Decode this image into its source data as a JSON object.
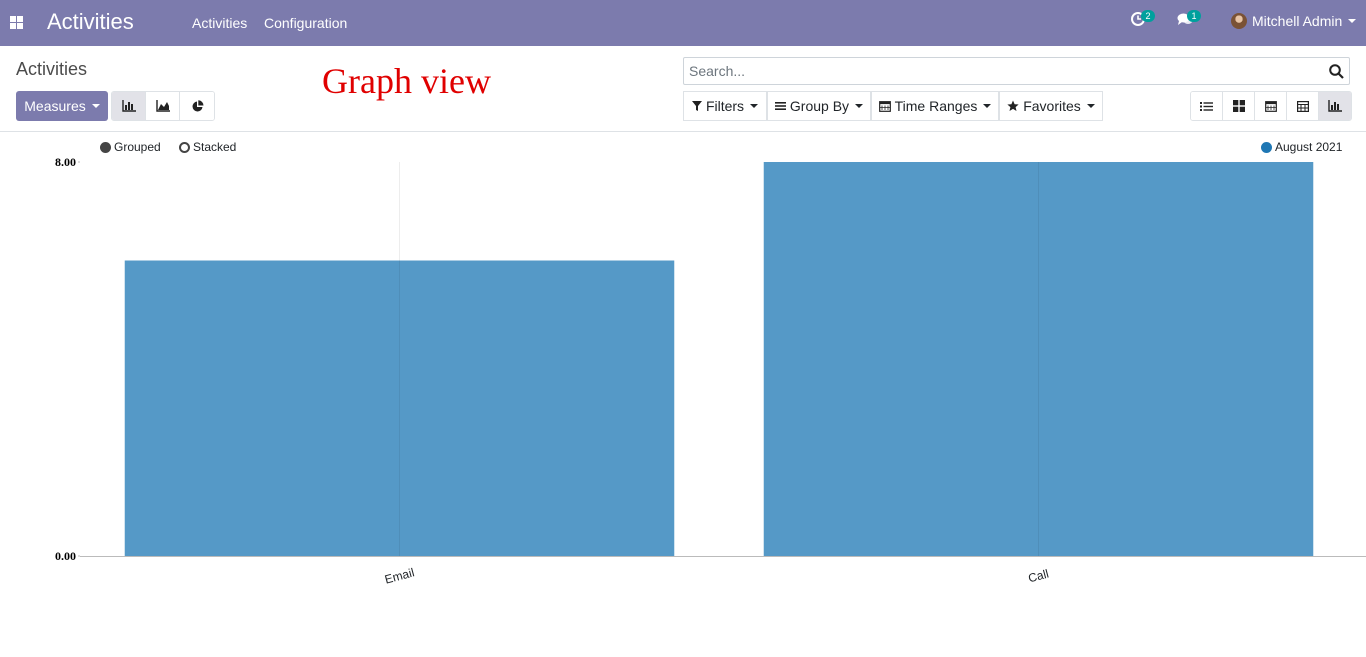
{
  "navbar": {
    "app_title": "Activities",
    "menu": [
      "Activities",
      "Configuration"
    ],
    "activity_count": "2",
    "message_count": "1",
    "user_name": "Mitchell Admin"
  },
  "control_panel": {
    "breadcrumb": "Activities",
    "annotation": "Graph view",
    "measures_label": "Measures",
    "search_placeholder": "Search...",
    "filters_label": "Filters",
    "groupby_label": "Group By",
    "timeranges_label": "Time Ranges",
    "favorites_label": "Favorites"
  },
  "graph_options": {
    "grouped_label": "Grouped",
    "stacked_label": "Stacked",
    "selected": "grouped"
  },
  "colors": {
    "navbar": "#7c7bad",
    "bar": "#5599c7",
    "legend_dot": "#1f77b4",
    "annotation": "#e00000"
  },
  "chart_data": {
    "type": "bar",
    "categories": [
      "Email",
      "Call"
    ],
    "series": [
      {
        "name": "August 2021",
        "values": [
          6,
          8
        ]
      }
    ],
    "ylim": [
      0,
      8
    ],
    "yticks": [
      "0.00",
      "8.00"
    ],
    "grid": false,
    "legend": "top-right"
  }
}
